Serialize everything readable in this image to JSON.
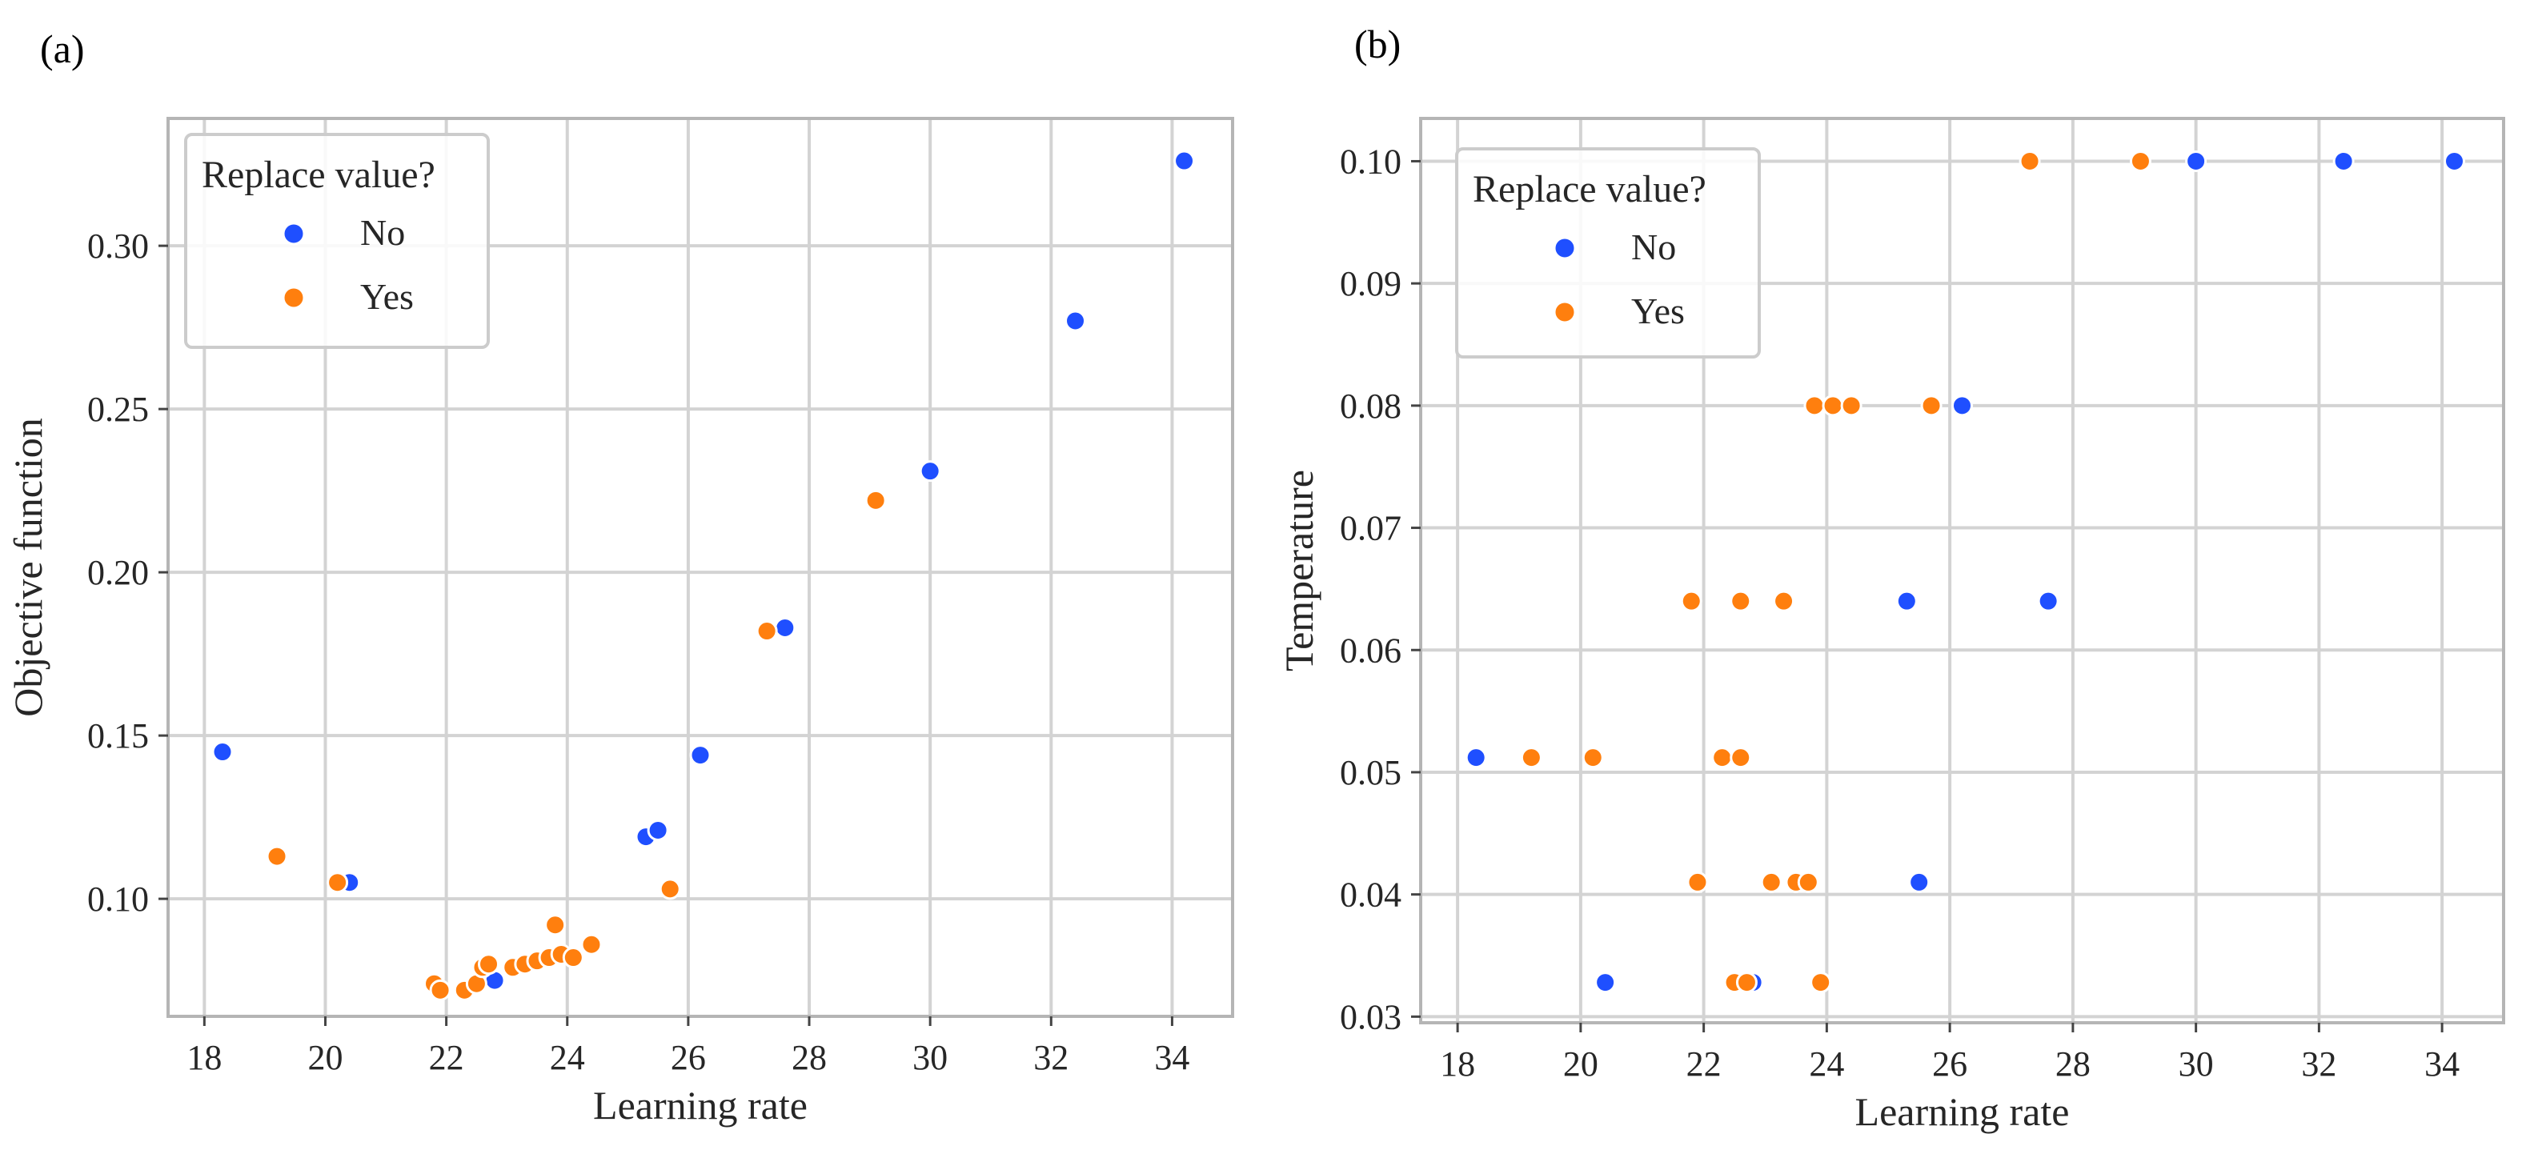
{
  "chart_data": [
    {
      "type": "scatter",
      "panel_label": "(a)",
      "xlabel": "Learning rate",
      "ylabel": "Objective function",
      "xlim": [
        17.4,
        35.0
      ],
      "ylim": [
        0.064,
        0.339
      ],
      "xticks": [
        18,
        20,
        22,
        24,
        26,
        28,
        30,
        32,
        34
      ],
      "yticks": [
        0.1,
        0.15,
        0.2,
        0.25,
        0.3
      ],
      "ytick_labels": [
        "0.10",
        "0.15",
        "0.20",
        "0.25",
        "0.30"
      ],
      "grid": true,
      "legend": {
        "title": "Replace  value?",
        "placement": "top-left",
        "entries": [
          {
            "label": "No",
            "color": "#1f4fff"
          },
          {
            "label": "Yes",
            "color": "#ff7f0e"
          }
        ]
      },
      "series": [
        {
          "name": "No",
          "color": "#1f4fff",
          "x": [
            18.3,
            20.4,
            22.8,
            25.3,
            25.5,
            26.2,
            27.6,
            30.0,
            32.4,
            34.2
          ],
          "y": [
            0.145,
            0.105,
            0.075,
            0.119,
            0.121,
            0.144,
            0.183,
            0.231,
            0.277,
            0.326
          ]
        },
        {
          "name": "Yes",
          "color": "#ff7f0e",
          "x": [
            19.2,
            20.2,
            21.8,
            21.9,
            22.3,
            22.5,
            22.6,
            22.7,
            23.1,
            23.3,
            23.5,
            23.7,
            23.8,
            23.9,
            24.1,
            24.4,
            25.7,
            27.3,
            29.1
          ],
          "y": [
            0.113,
            0.105,
            0.074,
            0.072,
            0.072,
            0.074,
            0.079,
            0.08,
            0.079,
            0.08,
            0.081,
            0.082,
            0.092,
            0.083,
            0.082,
            0.086,
            0.103,
            0.182,
            0.222
          ]
        }
      ]
    },
    {
      "type": "scatter",
      "panel_label": "(b)",
      "xlabel": "Learning rate",
      "ylabel": "Temperature",
      "xlim": [
        17.4,
        35.0
      ],
      "ylim": [
        0.0295,
        0.1035
      ],
      "xticks": [
        18,
        20,
        22,
        24,
        26,
        28,
        30,
        32,
        34
      ],
      "yticks": [
        0.03,
        0.04,
        0.05,
        0.06,
        0.07,
        0.08,
        0.09,
        0.1
      ],
      "ytick_labels": [
        "0.03",
        "0.04",
        "0.05",
        "0.06",
        "0.07",
        "0.08",
        "0.09",
        "0.10"
      ],
      "grid": true,
      "legend": {
        "title": "Replace  value?",
        "placement": "top-left",
        "entries": [
          {
            "label": "No",
            "color": "#1f4fff"
          },
          {
            "label": "Yes",
            "color": "#ff7f0e"
          }
        ]
      },
      "series": [
        {
          "name": "No",
          "color": "#1f4fff",
          "x": [
            18.3,
            20.4,
            22.8,
            25.3,
            25.5,
            26.2,
            27.6,
            30.0,
            32.4,
            34.2
          ],
          "y": [
            0.0512,
            0.0328,
            0.0328,
            0.064,
            0.041,
            0.08,
            0.064,
            0.1,
            0.1,
            0.1
          ]
        },
        {
          "name": "Yes",
          "color": "#ff7f0e",
          "x": [
            19.2,
            20.2,
            21.8,
            21.9,
            22.3,
            22.5,
            22.6,
            22.6,
            22.7,
            23.1,
            23.3,
            23.5,
            23.7,
            23.8,
            23.9,
            24.1,
            24.4,
            25.7,
            27.3,
            29.1
          ],
          "y": [
            0.0512,
            0.0512,
            0.064,
            0.041,
            0.0512,
            0.0328,
            0.0512,
            0.064,
            0.0328,
            0.041,
            0.064,
            0.041,
            0.041,
            0.08,
            0.0328,
            0.08,
            0.08,
            0.08,
            0.1,
            0.1
          ]
        }
      ]
    }
  ]
}
